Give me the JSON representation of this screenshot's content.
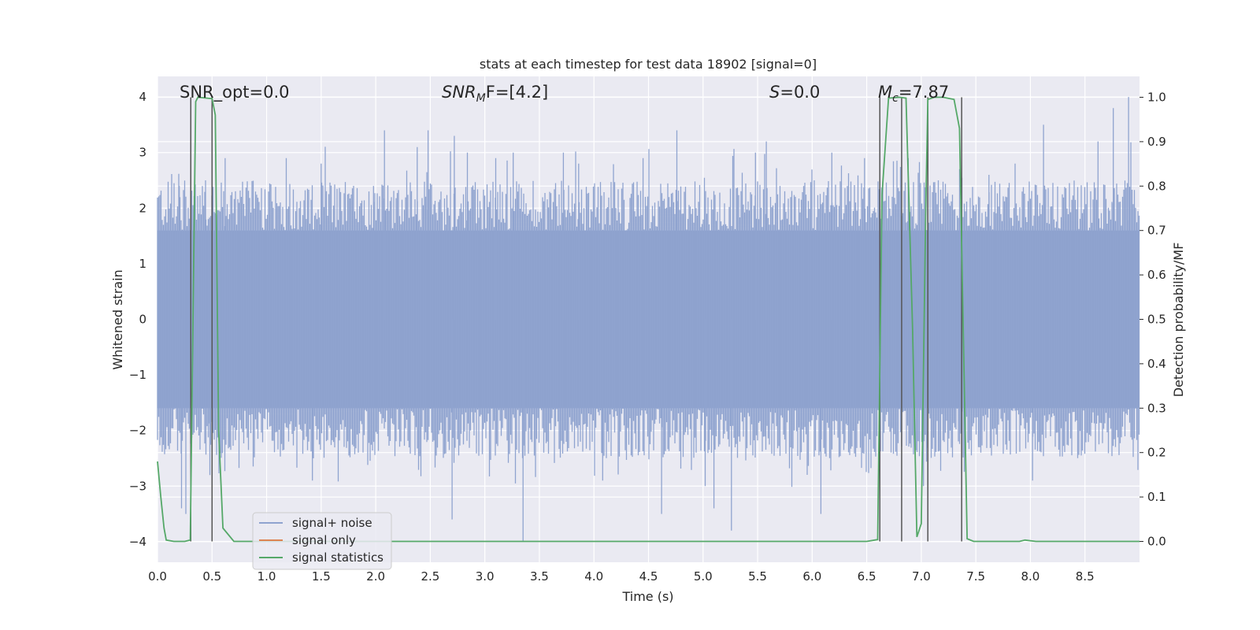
{
  "chart_data": {
    "type": "line",
    "title": "stats at each timestep for test data 18902 [signal=0]",
    "xlabel": "Time (s)",
    "ylabel_left": "Whitened strain",
    "ylabel_right": "Detection probability/MF",
    "xlim": [
      0.0,
      9.0
    ],
    "ylim_left": [
      -4.37,
      4.37
    ],
    "ylim_right": [
      -0.047,
      1.047
    ],
    "grid": true,
    "legend_placement": "lower-left",
    "x_ticks": [
      "0.0",
      "0.5",
      "1.0",
      "1.5",
      "2.0",
      "2.5",
      "3.0",
      "3.5",
      "4.0",
      "4.5",
      "5.0",
      "5.5",
      "6.0",
      "6.5",
      "7.0",
      "7.5",
      "8.0",
      "8.5"
    ],
    "y_ticks_left": [
      "4",
      "3",
      "2",
      "1",
      "0",
      "−1",
      "−2",
      "−3",
      "−4"
    ],
    "y_ticks_right": [
      "1.0",
      "0.9",
      "0.8",
      "0.7",
      "0.6",
      "0.5",
      "0.4",
      "0.3",
      "0.2",
      "0.1",
      "0.0"
    ],
    "annotations": {
      "snr_opt": "SNR_opt=0.0",
      "snr_mf_base": "SNR",
      "snr_mf_sub": "M",
      "snr_mf_rest": "F=[4.2]",
      "s_base": "S",
      "s_rest": "=0.0",
      "mc_base": "M",
      "mc_sub": "c",
      "mc_rest": "=7.87"
    },
    "series": [
      {
        "name": "signal+ noise",
        "color": "#8fa3cf",
        "style": "dense whitened-strain noise, bulk approx ±1.6 with spikes to about ±4",
        "spikes": [
          [
            0.2,
            2.4
          ],
          [
            0.22,
            -3.4
          ],
          [
            0.26,
            -3.5
          ],
          [
            0.44,
            2.5
          ],
          [
            0.48,
            -2.8
          ],
          [
            0.62,
            2.9
          ],
          [
            1.18,
            2.9
          ],
          [
            1.42,
            -2.9
          ],
          [
            1.5,
            2.8
          ],
          [
            1.98,
            2.4
          ],
          [
            2.08,
            3.4
          ],
          [
            2.38,
            3.1
          ],
          [
            2.48,
            3.4
          ],
          [
            2.7,
            -3.6
          ],
          [
            2.72,
            3.3
          ],
          [
            2.84,
            3.0
          ],
          [
            3.1,
            2.9
          ],
          [
            3.26,
            3.0
          ],
          [
            3.35,
            -4.0
          ],
          [
            3.72,
            3.0
          ],
          [
            3.86,
            2.8
          ],
          [
            4.08,
            -2.9
          ],
          [
            4.45,
            2.9
          ],
          [
            4.62,
            -3.5
          ],
          [
            4.76,
            3.4
          ],
          [
            5.02,
            -3.0
          ],
          [
            5.1,
            -3.4
          ],
          [
            5.26,
            -3.8
          ],
          [
            5.48,
            3.0
          ],
          [
            5.58,
            3.2
          ],
          [
            6.08,
            -3.5
          ],
          [
            6.18,
            3.0
          ],
          [
            6.48,
            2.9
          ],
          [
            6.88,
            2.9
          ],
          [
            7.02,
            -3.0
          ],
          [
            7.62,
            2.6
          ],
          [
            7.86,
            2.8
          ],
          [
            8.02,
            -2.9
          ],
          [
            8.12,
            3.5
          ],
          [
            8.62,
            3.2
          ],
          [
            8.76,
            3.8
          ],
          [
            8.9,
            4.0
          ]
        ]
      },
      {
        "name": "signal only",
        "color": "#dd8452",
        "values": []
      },
      {
        "name": "signal statistics",
        "color": "#55a868",
        "axis": "right",
        "x": [
          0.0,
          0.03,
          0.06,
          0.08,
          0.15,
          0.25,
          0.3,
          0.35,
          0.37,
          0.5,
          0.53,
          0.56,
          0.6,
          0.7,
          6.5,
          6.6,
          6.64,
          6.7,
          6.8,
          6.86,
          6.92,
          6.96,
          7.0,
          7.04,
          7.06,
          7.12,
          7.2,
          7.3,
          7.35,
          7.42,
          7.48,
          7.9,
          7.95,
          8.05,
          8.3,
          9.0
        ],
        "y": [
          0.18,
          0.1,
          0.03,
          0.003,
          0.0,
          0.0,
          0.003,
          0.99,
          1.0,
          0.997,
          0.96,
          0.25,
          0.03,
          0.0,
          0.0,
          0.004,
          0.78,
          0.998,
          1.0,
          0.998,
          0.48,
          0.01,
          0.04,
          0.73,
          0.995,
          1.0,
          1.0,
          0.995,
          0.93,
          0.006,
          0.0,
          0.0,
          0.003,
          0.0,
          0.0,
          0.0
        ]
      }
    ],
    "vertical_markers_s": [
      0.305,
      0.5,
      6.62,
      6.82,
      7.06,
      7.37
    ],
    "legend": [
      {
        "label": "signal+ noise",
        "color": "#8fa3cf"
      },
      {
        "label": "signal only",
        "color": "#dd8452"
      },
      {
        "label": "signal statistics",
        "color": "#55a868"
      }
    ]
  }
}
